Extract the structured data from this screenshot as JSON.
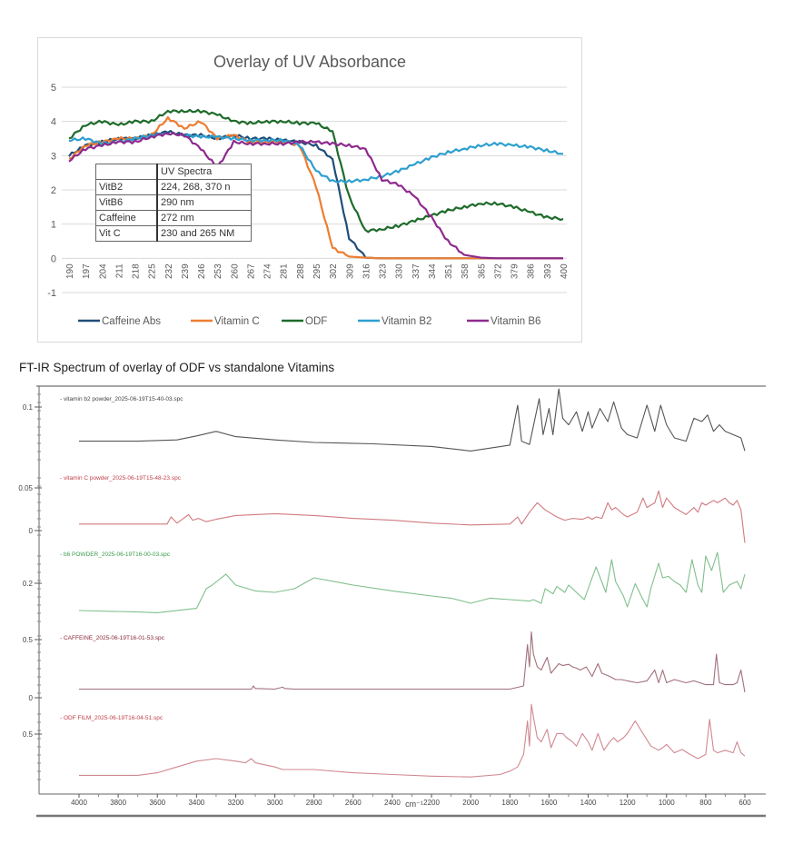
{
  "chart_data": [
    {
      "type": "line",
      "title": "Overlay of UV Absorbance",
      "xlabel": "",
      "ylabel": "",
      "ylim": [
        -1,
        5
      ],
      "yticks": [
        "-1",
        "0",
        "1",
        "2",
        "3",
        "4",
        "5"
      ],
      "grid": true,
      "legend_position": "bottom",
      "x_categories": [
        "190",
        "197",
        "204",
        "211",
        "218",
        "225",
        "232",
        "239",
        "246",
        "253",
        "260",
        "267",
        "274",
        "281",
        "288",
        "295",
        "302",
        "309",
        "316",
        "323",
        "330",
        "337",
        "344",
        "351",
        "358",
        "365",
        "372",
        "379",
        "386",
        "393",
        "400"
      ],
      "x": [
        190,
        197,
        204,
        211,
        218,
        225,
        232,
        239,
        246,
        253,
        260,
        267,
        274,
        281,
        288,
        295,
        302,
        309,
        316,
        323,
        330,
        337,
        344,
        351,
        358,
        365,
        372,
        379,
        386,
        393,
        400
      ],
      "series": [
        {
          "name": "Caffeine Abs",
          "color": "#1f4e79",
          "values": [
            3.0,
            3.3,
            3.4,
            3.5,
            3.5,
            3.6,
            3.7,
            3.6,
            3.6,
            3.5,
            3.6,
            3.5,
            3.5,
            3.45,
            3.4,
            3.3,
            2.9,
            0.6,
            0.02,
            0,
            0,
            0,
            0,
            0,
            0,
            0,
            0,
            0,
            0,
            0,
            0
          ]
        },
        {
          "name": "Vitamin C",
          "color": "#ed7d31",
          "values": [
            2.9,
            3.3,
            3.4,
            3.5,
            3.5,
            3.6,
            4.1,
            3.8,
            4.0,
            3.5,
            3.6,
            3.4,
            3.4,
            3.4,
            3.3,
            2.1,
            0.3,
            0.05,
            0.02,
            0,
            0,
            0,
            0,
            0,
            0,
            0,
            0,
            0,
            0,
            0,
            0
          ]
        },
        {
          "name": "ODF",
          "color": "#1e6b2a",
          "values": [
            3.5,
            3.9,
            4.0,
            3.9,
            4.0,
            4.0,
            4.3,
            4.3,
            4.3,
            4.2,
            4.0,
            3.95,
            4.0,
            4.0,
            3.95,
            3.95,
            3.7,
            1.8,
            0.8,
            0.85,
            0.95,
            1.1,
            1.25,
            1.4,
            1.5,
            1.6,
            1.6,
            1.5,
            1.35,
            1.2,
            1.15
          ]
        },
        {
          "name": "Vitamin B2",
          "color": "#2e9fd0",
          "values": [
            3.45,
            3.5,
            3.35,
            3.4,
            3.5,
            3.6,
            3.65,
            3.6,
            3.55,
            3.55,
            3.5,
            3.45,
            3.45,
            3.45,
            3.3,
            2.55,
            2.25,
            2.25,
            2.3,
            2.4,
            2.55,
            2.75,
            2.95,
            3.1,
            3.2,
            3.3,
            3.35,
            3.3,
            3.25,
            3.15,
            3.05
          ]
        },
        {
          "name": "Vitamin B6",
          "color": "#8e2a8e",
          "values": [
            2.85,
            3.2,
            3.3,
            3.4,
            3.4,
            3.55,
            3.65,
            3.6,
            3.2,
            2.65,
            3.4,
            3.35,
            3.35,
            3.35,
            3.4,
            3.4,
            3.35,
            3.3,
            3.2,
            2.3,
            2.15,
            1.8,
            1.2,
            0.5,
            0.1,
            0.02,
            0,
            0,
            0,
            0,
            0
          ]
        }
      ],
      "annotation_table": {
        "header": [
          "",
          "UV Spectra"
        ],
        "rows": [
          [
            "VitB2",
            "224, 268, 370 n"
          ],
          [
            "VitB6",
            "290 nm"
          ],
          [
            "Caffeine",
            "272 nm"
          ],
          [
            "Vit C",
            "230 and 265 NM"
          ]
        ]
      }
    },
    {
      "type": "line",
      "title": "FT-IR Spectrum of overlay of ODF vs standalone Vitamins",
      "xlabel": "cm⁻¹",
      "xlim": [
        4000,
        600
      ],
      "x_ticks": [
        "4000",
        "3800",
        "3600",
        "3400",
        "3200",
        "3000",
        "2800",
        "2600",
        "2400",
        "2200",
        "2000",
        "1800",
        "1600",
        "1400",
        "1200",
        "1000",
        "800",
        "600"
      ],
      "grid": false,
      "layout": "stacked panels",
      "panels": [
        {
          "name": "vitamin b2 powder_2025-06-19T15-40-03.spc",
          "color": "#555555",
          "label_color": "#444444",
          "y_ticks": [
            "0.1"
          ],
          "x": [
            4000,
            3700,
            3500,
            3400,
            3300,
            3200,
            3000,
            2800,
            2500,
            2200,
            2000,
            1800,
            1760,
            1740,
            1700,
            1650,
            1630,
            1600,
            1580,
            1550,
            1530,
            1500,
            1460,
            1430,
            1400,
            1380,
            1340,
            1300,
            1270,
            1230,
            1200,
            1150,
            1100,
            1060,
            1030,
            1000,
            960,
            900,
            860,
            820,
            790,
            760,
            730,
            700,
            660,
            620,
            600
          ],
          "values": [
            0.2,
            0.2,
            0.22,
            0.28,
            0.35,
            0.27,
            0.22,
            0.18,
            0.16,
            0.12,
            0.05,
            0.14,
            0.75,
            0.2,
            0.15,
            0.85,
            0.3,
            0.7,
            0.3,
            1.0,
            0.55,
            0.45,
            0.65,
            0.35,
            0.65,
            0.4,
            0.7,
            0.5,
            0.8,
            0.4,
            0.3,
            0.25,
            0.75,
            0.35,
            0.75,
            0.45,
            0.25,
            0.2,
            0.55,
            0.5,
            0.6,
            0.35,
            0.45,
            0.35,
            0.3,
            0.25,
            0.05
          ]
        },
        {
          "name": "vitamin C powder_2025-06-19T15-48-23.spc",
          "color": "#d07a80",
          "label_color": "#c0404a",
          "y_ticks": [
            "0.05",
            "0"
          ],
          "x": [
            4000,
            3700,
            3550,
            3530,
            3500,
            3440,
            3420,
            3390,
            3350,
            3300,
            3200,
            3100,
            3000,
            2900,
            2800,
            2600,
            2400,
            2200,
            2000,
            1800,
            1760,
            1740,
            1700,
            1660,
            1620,
            1560,
            1520,
            1480,
            1430,
            1400,
            1380,
            1360,
            1330,
            1300,
            1280,
            1260,
            1220,
            1200,
            1150,
            1120,
            1100,
            1060,
            1040,
            1020,
            1000,
            960,
            900,
            860,
            840,
            820,
            800,
            780,
            760,
            740,
            700,
            680,
            660,
            640,
            620,
            600
          ],
          "values": [
            0.1,
            0.1,
            0.1,
            0.25,
            0.12,
            0.3,
            0.18,
            0.22,
            0.15,
            0.2,
            0.28,
            0.3,
            0.32,
            0.3,
            0.28,
            0.22,
            0.18,
            0.12,
            0.08,
            0.1,
            0.25,
            0.1,
            0.35,
            0.55,
            0.4,
            0.25,
            0.18,
            0.22,
            0.2,
            0.25,
            0.2,
            0.25,
            0.22,
            0.55,
            0.4,
            0.45,
            0.3,
            0.25,
            0.35,
            0.65,
            0.45,
            0.55,
            0.8,
            0.45,
            0.65,
            0.45,
            0.3,
            0.45,
            0.35,
            0.55,
            0.5,
            0.55,
            0.6,
            0.55,
            0.65,
            0.55,
            0.5,
            0.6,
            0.4,
            -0.3
          ]
        },
        {
          "name": "b6 POWDER_2025-06-19T16-00-03.spc",
          "color": "#7fbf8c",
          "label_color": "#3a9a4a",
          "y_ticks": [
            "0.2"
          ],
          "x": [
            4000,
            3700,
            3600,
            3400,
            3350,
            3320,
            3250,
            3200,
            3100,
            3000,
            2900,
            2800,
            2600,
            2400,
            2200,
            2100,
            2000,
            1900,
            1800,
            1700,
            1680,
            1640,
            1620,
            1580,
            1560,
            1520,
            1500,
            1480,
            1440,
            1420,
            1400,
            1360,
            1310,
            1280,
            1260,
            1220,
            1200,
            1160,
            1120,
            1100,
            1080,
            1040,
            1020,
            990,
            960,
            930,
            900,
            870,
            840,
            820,
            800,
            770,
            740,
            710,
            680,
            640,
            620,
            600
          ],
          "values": [
            0.15,
            0.13,
            0.12,
            0.18,
            0.45,
            0.5,
            0.65,
            0.5,
            0.42,
            0.4,
            0.45,
            0.6,
            0.5,
            0.42,
            0.35,
            0.32,
            0.25,
            0.32,
            0.3,
            0.28,
            0.3,
            0.25,
            0.45,
            0.38,
            0.48,
            0.4,
            0.5,
            0.45,
            0.35,
            0.3,
            0.45,
            0.75,
            0.4,
            0.85,
            0.55,
            0.35,
            0.2,
            0.52,
            0.3,
            0.2,
            0.45,
            0.8,
            0.6,
            0.62,
            0.55,
            0.5,
            0.4,
            0.85,
            0.5,
            0.4,
            0.9,
            0.7,
            0.95,
            0.4,
            0.5,
            0.55,
            0.45,
            0.65
          ]
        },
        {
          "name": "CAFFEINE_2025-06-19T16-01-53.spc",
          "color": "#a0707a",
          "label_color": "#8a2a3a",
          "y_ticks": [
            "0.5",
            "0"
          ],
          "x": [
            4000,
            3500,
            3120,
            3110,
            3100,
            3000,
            2960,
            2950,
            2900,
            2800,
            2600,
            2400,
            2200,
            2000,
            1800,
            1730,
            1710,
            1700,
            1690,
            1680,
            1660,
            1640,
            1610,
            1590,
            1550,
            1530,
            1500,
            1480,
            1460,
            1440,
            1410,
            1380,
            1350,
            1330,
            1290,
            1260,
            1230,
            1200,
            1150,
            1100,
            1060,
            1040,
            1020,
            1000,
            960,
            900,
            860,
            800,
            760,
            745,
            730,
            700,
            660,
            640,
            620,
            600
          ],
          "values": [
            0.05,
            0.05,
            0.05,
            0.1,
            0.06,
            0.05,
            0.08,
            0.06,
            0.05,
            0.05,
            0.05,
            0.05,
            0.05,
            0.05,
            0.05,
            0.1,
            0.75,
            0.4,
            0.95,
            0.6,
            0.4,
            0.35,
            0.55,
            0.3,
            0.45,
            0.42,
            0.44,
            0.4,
            0.38,
            0.35,
            0.4,
            0.25,
            0.45,
            0.3,
            0.25,
            0.2,
            0.2,
            0.18,
            0.15,
            0.18,
            0.35,
            0.15,
            0.35,
            0.15,
            0.2,
            0.15,
            0.18,
            0.12,
            0.12,
            0.6,
            0.15,
            0.12,
            0.12,
            0.15,
            0.35,
            0.0
          ]
        },
        {
          "name": "ODF FILM_2025-06-19T16-04-51.spc",
          "color": "#d08890",
          "label_color": "#c0404a",
          "y_ticks": [
            "0.5"
          ],
          "x": [
            4000,
            3700,
            3600,
            3500,
            3400,
            3300,
            3200,
            3150,
            3120,
            3100,
            3000,
            2960,
            2900,
            2800,
            2600,
            2400,
            2200,
            2000,
            1850,
            1800,
            1760,
            1730,
            1710,
            1700,
            1690,
            1680,
            1660,
            1640,
            1610,
            1590,
            1560,
            1530,
            1510,
            1480,
            1460,
            1430,
            1400,
            1380,
            1350,
            1320,
            1290,
            1270,
            1250,
            1220,
            1200,
            1160,
            1120,
            1080,
            1040,
            1020,
            1000,
            960,
            920,
            880,
            840,
            800,
            780,
            760,
            740,
            700,
            660,
            640,
            620,
            600
          ],
          "values": [
            0.05,
            0.05,
            0.08,
            0.15,
            0.22,
            0.25,
            0.22,
            0.2,
            0.25,
            0.2,
            0.15,
            0.12,
            0.12,
            0.12,
            0.08,
            0.06,
            0.04,
            0.03,
            0.06,
            0.1,
            0.15,
            0.3,
            0.7,
            0.4,
            0.9,
            0.75,
            0.5,
            0.45,
            0.6,
            0.38,
            0.55,
            0.55,
            0.5,
            0.45,
            0.4,
            0.55,
            0.45,
            0.35,
            0.55,
            0.35,
            0.45,
            0.5,
            0.45,
            0.5,
            0.55,
            0.7,
            0.55,
            0.4,
            0.35,
            0.38,
            0.42,
            0.32,
            0.36,
            0.3,
            0.25,
            0.3,
            0.72,
            0.35,
            0.32,
            0.35,
            0.32,
            0.45,
            0.32,
            0.28
          ]
        }
      ]
    }
  ]
}
